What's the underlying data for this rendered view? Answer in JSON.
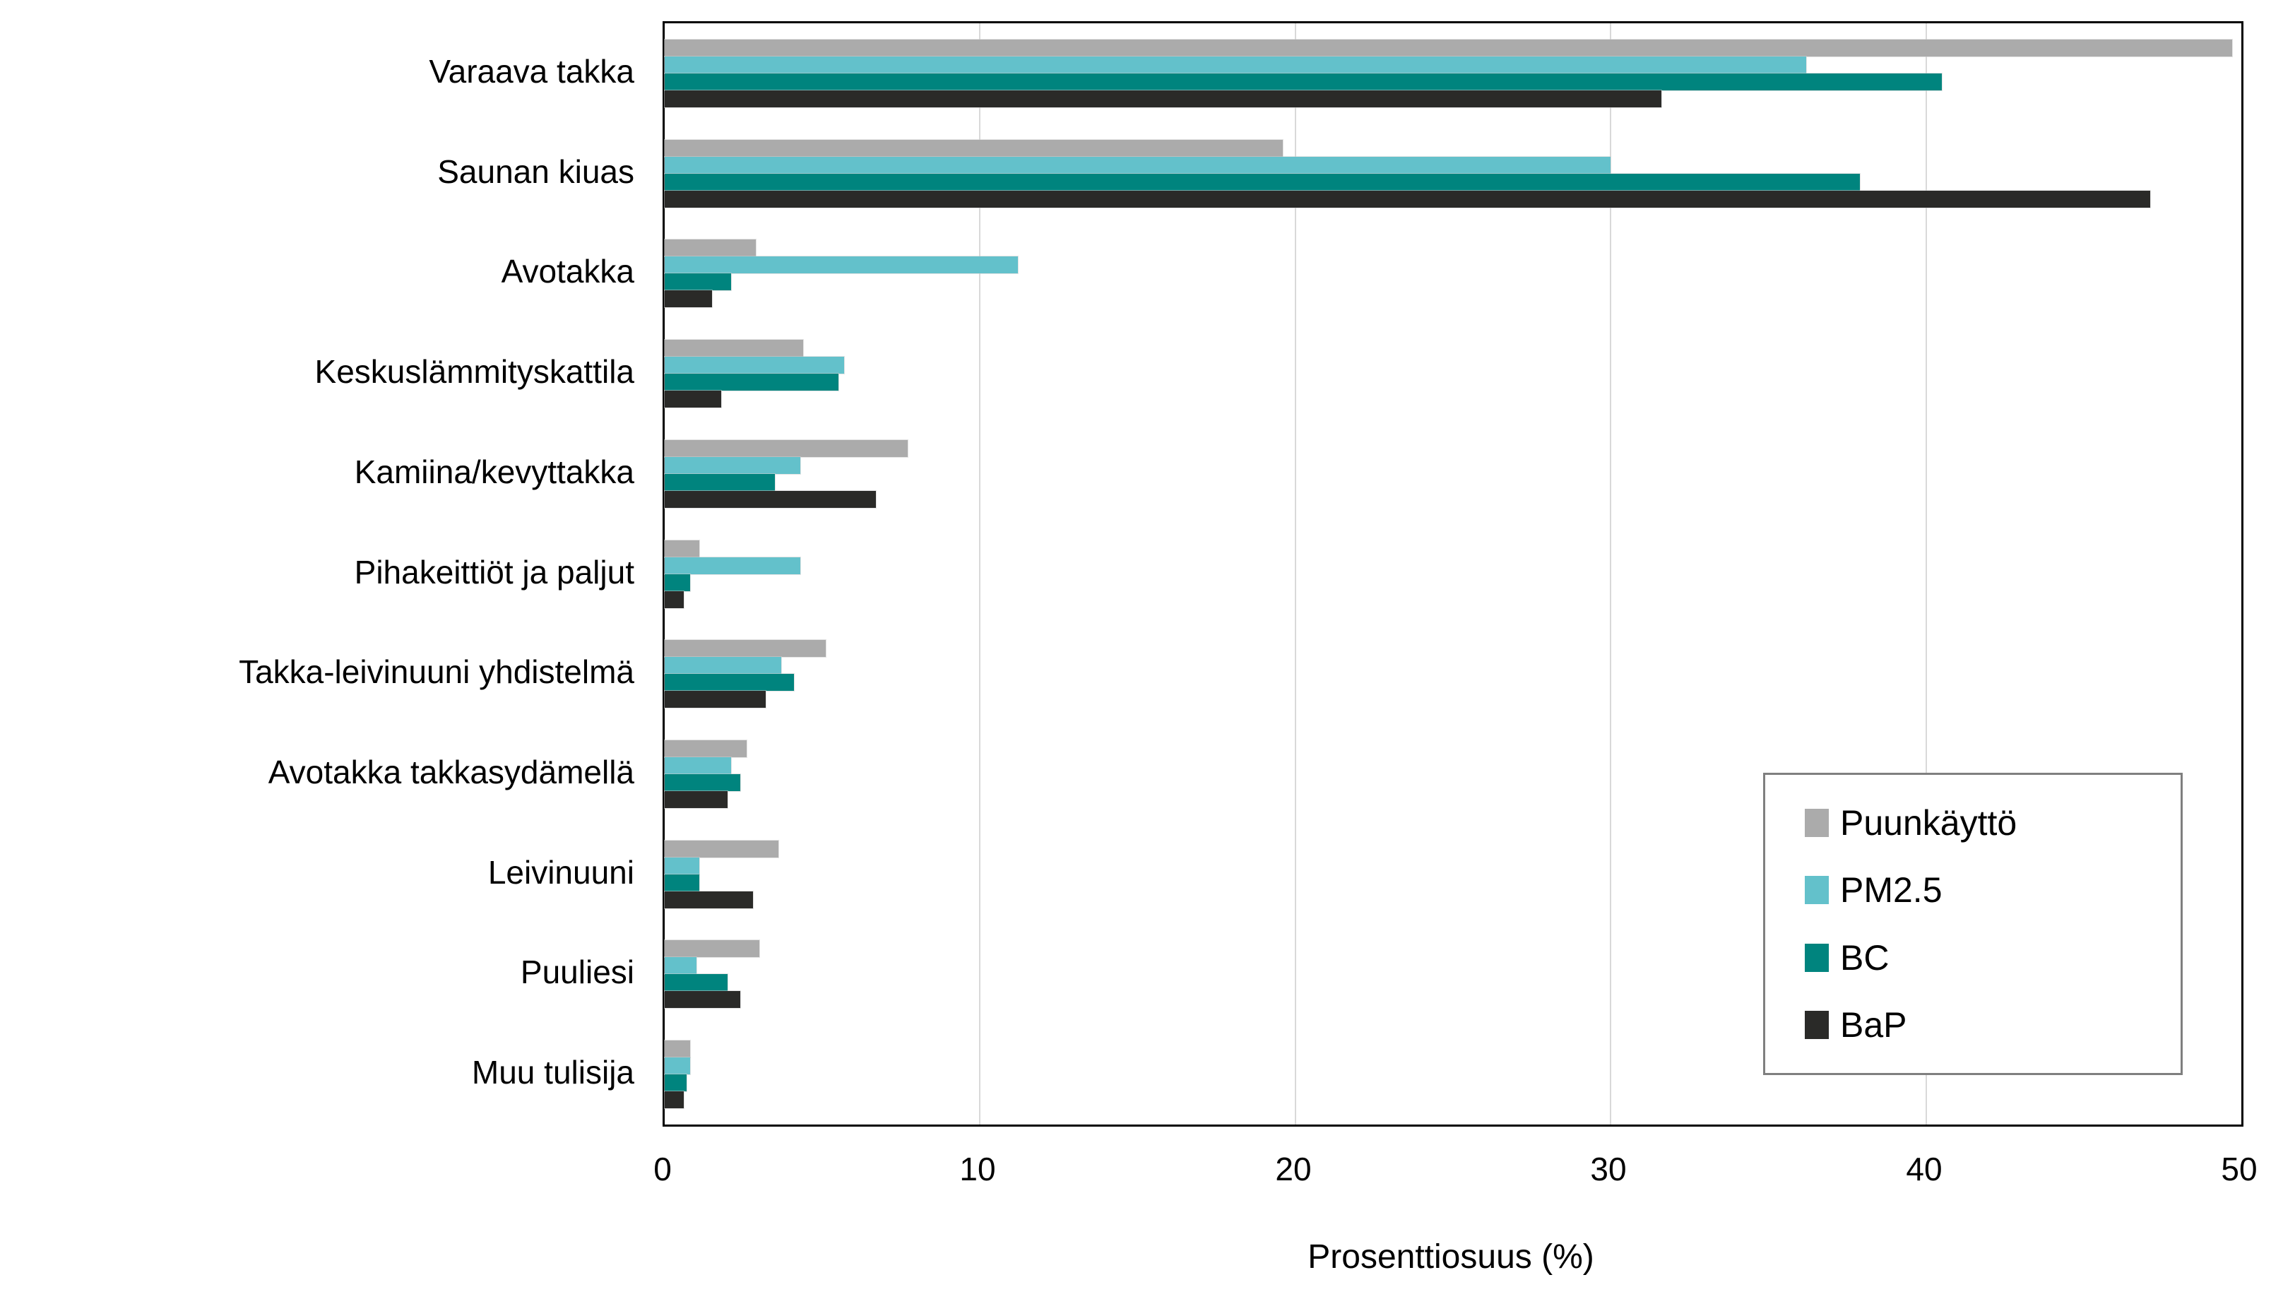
{
  "chart_data": {
    "type": "bar",
    "orientation": "horizontal",
    "title": "",
    "xlabel": "Prosenttiosuus (%)",
    "ylabel": "",
    "xlim": [
      0,
      50
    ],
    "xticks": [
      0,
      10,
      20,
      30,
      40,
      50
    ],
    "grid": "vertical-gridlines-at-xticks",
    "legend_position": "lower-right-inside",
    "categories": [
      "Varaava takka",
      "Saunan kiuas",
      "Avotakka",
      "Keskuslämmityskattila",
      "Kamiina/kevyttakka",
      "Pihakeittiöt ja paljut",
      "Takka-leivinuuni yhdistelmä",
      "Avotakka takkasydämellä",
      "Leivinuuni",
      "Puuliesi",
      "Muu tulisija"
    ],
    "series": [
      {
        "name": "Puunkäyttö",
        "color": "#ABABAB",
        "values": [
          49.7,
          19.6,
          2.9,
          4.4,
          7.7,
          1.1,
          5.1,
          2.6,
          3.6,
          3.0,
          0.8
        ]
      },
      {
        "name": "PM2.5",
        "color": "#63C1CB",
        "values": [
          36.2,
          30.0,
          11.2,
          5.7,
          4.3,
          4.3,
          3.7,
          2.1,
          1.1,
          1.0,
          0.8
        ]
      },
      {
        "name": "BC",
        "color": "#00847E",
        "values": [
          40.5,
          37.9,
          2.1,
          5.5,
          3.5,
          0.8,
          4.1,
          2.4,
          1.1,
          2.0,
          0.7
        ]
      },
      {
        "name": "BaP",
        "color": "#2A2A28",
        "values": [
          31.6,
          47.1,
          1.5,
          1.8,
          6.7,
          0.6,
          3.2,
          2.0,
          2.8,
          2.4,
          0.6
        ]
      }
    ]
  },
  "colors": {
    "gridline": "#D9D9D9",
    "plot_frame": "#000000",
    "legend_border": "#7F7F7F",
    "background": "#FFFFFF"
  }
}
